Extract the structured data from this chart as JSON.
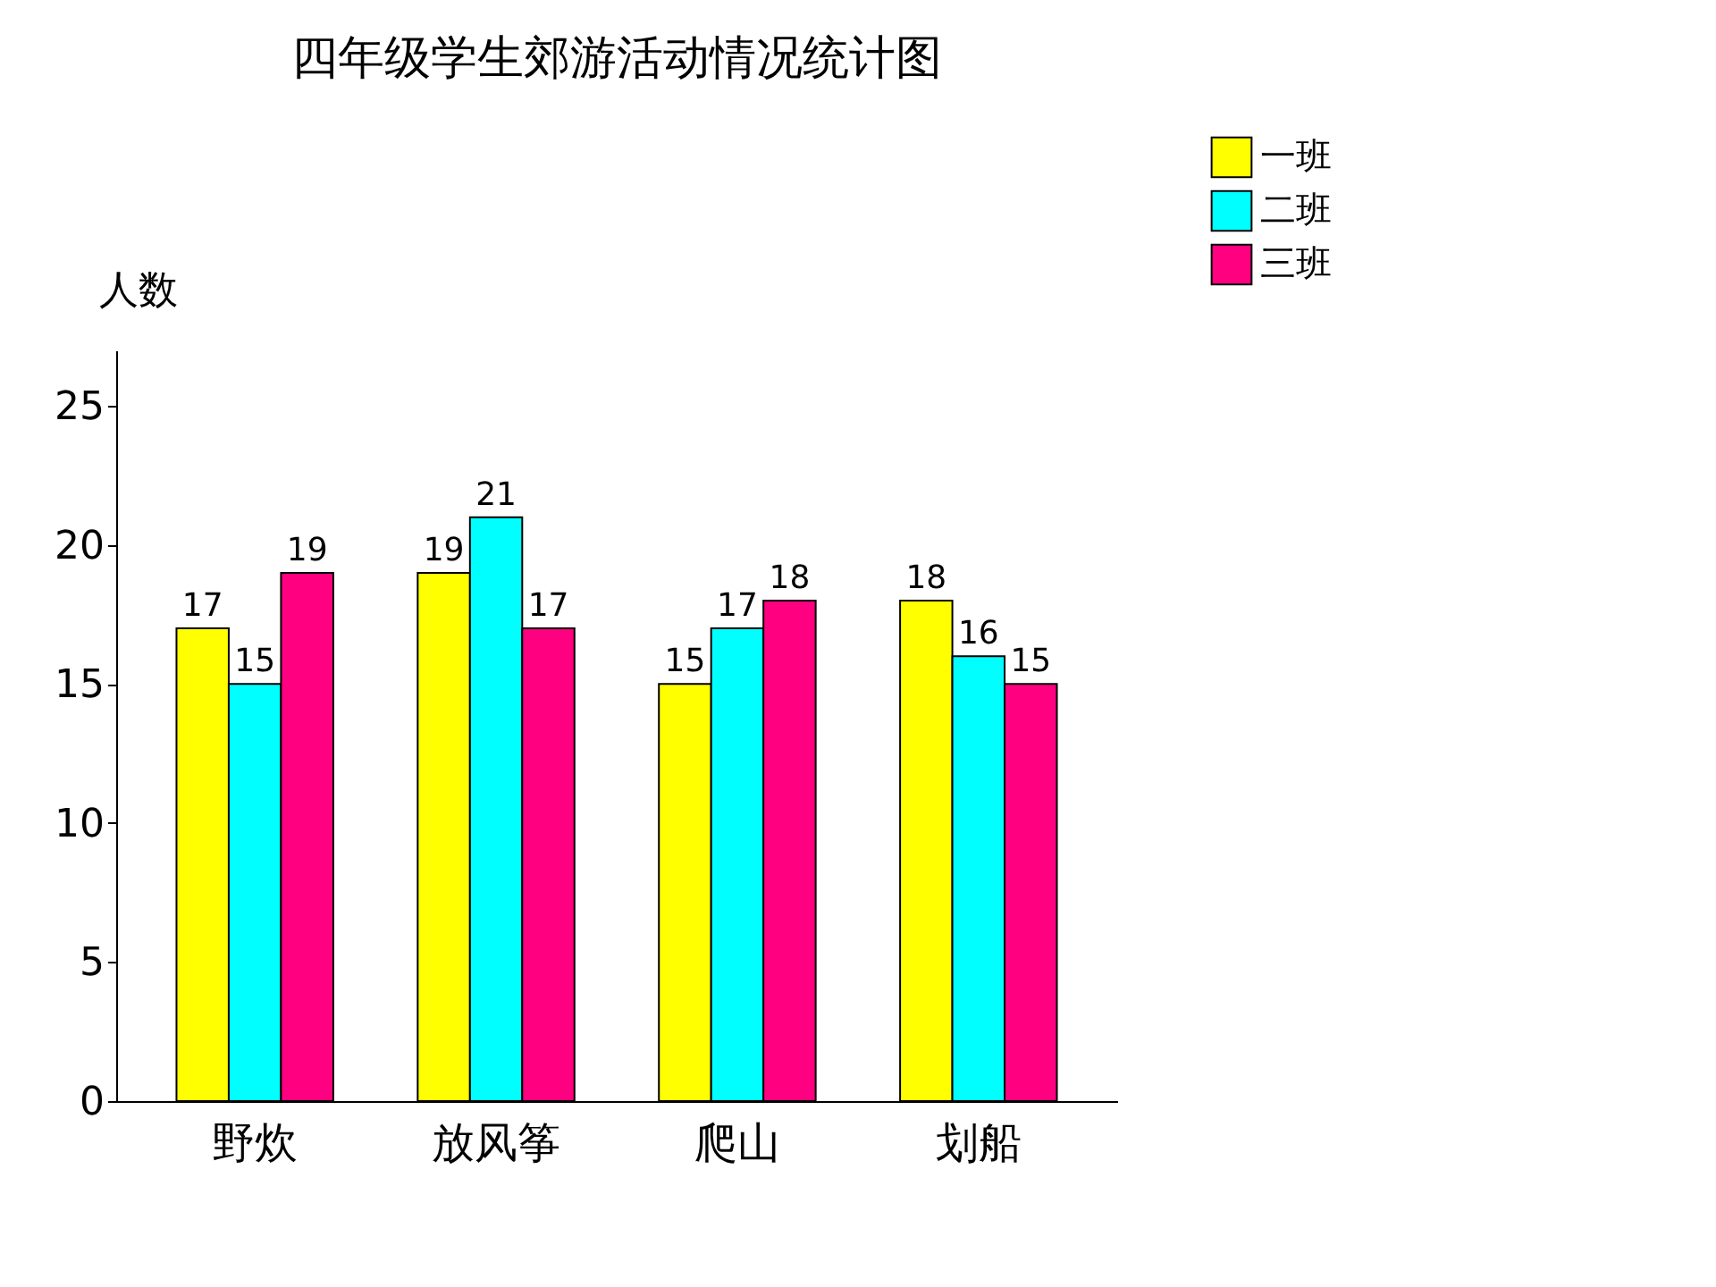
{
  "chart_data": {
    "type": "bar",
    "title": "四年级学生郊游活动情况统计图",
    "ylabel": "人数",
    "categories": [
      "野炊",
      "放风筝",
      "爬山",
      "划船"
    ],
    "series": [
      {
        "name": "一班",
        "color": "#ffff00",
        "values": [
          17,
          19,
          15,
          18
        ]
      },
      {
        "name": "二班",
        "color": "#00ffff",
        "values": [
          15,
          21,
          17,
          16
        ]
      },
      {
        "name": "三班",
        "color": "#ff0080",
        "values": [
          19,
          17,
          18,
          15
        ]
      }
    ],
    "ylim": [
      0,
      27
    ],
    "yticks": [
      0,
      5,
      10,
      15,
      20,
      25
    ],
    "data_labels": true,
    "legend": "top right",
    "grid": false
  }
}
